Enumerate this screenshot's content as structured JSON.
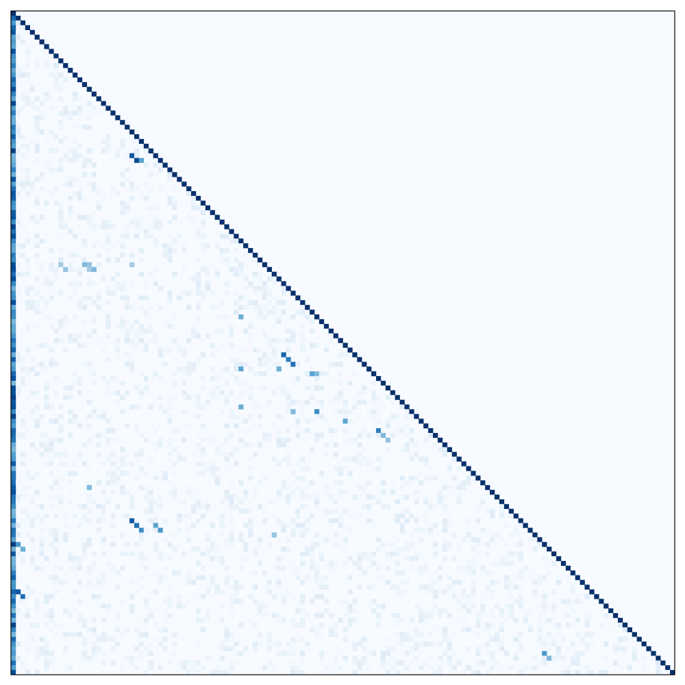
{
  "chart_data": {
    "type": "heatmap",
    "title": "",
    "xlabel": "",
    "ylabel": "",
    "x_ticks": "none",
    "y_ticks": "none",
    "grid": false,
    "legend": "none",
    "colormap": "Blues",
    "value_range": [
      0,
      1
    ],
    "size": 140,
    "mask": "upper-triangle",
    "diagonal_value": 1.0,
    "first_column_value_range": [
      0.45,
      0.95
    ],
    "background_value_range": [
      0.0,
      0.12
    ],
    "highlights": [
      {
        "row": 0,
        "col": 0,
        "value": 1.0
      },
      {
        "row": 30,
        "col": 25,
        "value": 0.85
      },
      {
        "row": 31,
        "col": 26,
        "value": 0.9
      },
      {
        "row": 31,
        "col": 27,
        "value": 0.55
      },
      {
        "row": 53,
        "col": 10,
        "value": 0.35
      },
      {
        "row": 53,
        "col": 15,
        "value": 0.45
      },
      {
        "row": 53,
        "col": 16,
        "value": 0.4
      },
      {
        "row": 54,
        "col": 11,
        "value": 0.4
      },
      {
        "row": 54,
        "col": 16,
        "value": 0.35
      },
      {
        "row": 54,
        "col": 17,
        "value": 0.45
      },
      {
        "row": 53,
        "col": 25,
        "value": 0.35
      },
      {
        "row": 64,
        "col": 48,
        "value": 0.5
      },
      {
        "row": 72,
        "col": 57,
        "value": 0.8
      },
      {
        "row": 73,
        "col": 58,
        "value": 0.7
      },
      {
        "row": 74,
        "col": 59,
        "value": 0.75
      },
      {
        "row": 75,
        "col": 48,
        "value": 0.55
      },
      {
        "row": 75,
        "col": 56,
        "value": 0.5
      },
      {
        "row": 76,
        "col": 63,
        "value": 0.55
      },
      {
        "row": 76,
        "col": 64,
        "value": 0.45
      },
      {
        "row": 83,
        "col": 48,
        "value": 0.5
      },
      {
        "row": 84,
        "col": 59,
        "value": 0.45
      },
      {
        "row": 84,
        "col": 64,
        "value": 0.65
      },
      {
        "row": 86,
        "col": 70,
        "value": 0.55
      },
      {
        "row": 88,
        "col": 77,
        "value": 0.7
      },
      {
        "row": 89,
        "col": 78,
        "value": 0.45
      },
      {
        "row": 90,
        "col": 79,
        "value": 0.4
      },
      {
        "row": 100,
        "col": 16,
        "value": 0.45
      },
      {
        "row": 107,
        "col": 25,
        "value": 0.85
      },
      {
        "row": 108,
        "col": 26,
        "value": 0.75
      },
      {
        "row": 108,
        "col": 30,
        "value": 0.55
      },
      {
        "row": 109,
        "col": 27,
        "value": 0.65
      },
      {
        "row": 109,
        "col": 31,
        "value": 0.6
      },
      {
        "row": 110,
        "col": 55,
        "value": 0.4
      },
      {
        "row": 112,
        "col": 1,
        "value": 0.6
      },
      {
        "row": 113,
        "col": 2,
        "value": 0.5
      },
      {
        "row": 122,
        "col": 1,
        "value": 0.85
      },
      {
        "row": 123,
        "col": 2,
        "value": 0.75
      },
      {
        "row": 135,
        "col": 112,
        "value": 0.6
      },
      {
        "row": 136,
        "col": 113,
        "value": 0.45
      }
    ]
  }
}
